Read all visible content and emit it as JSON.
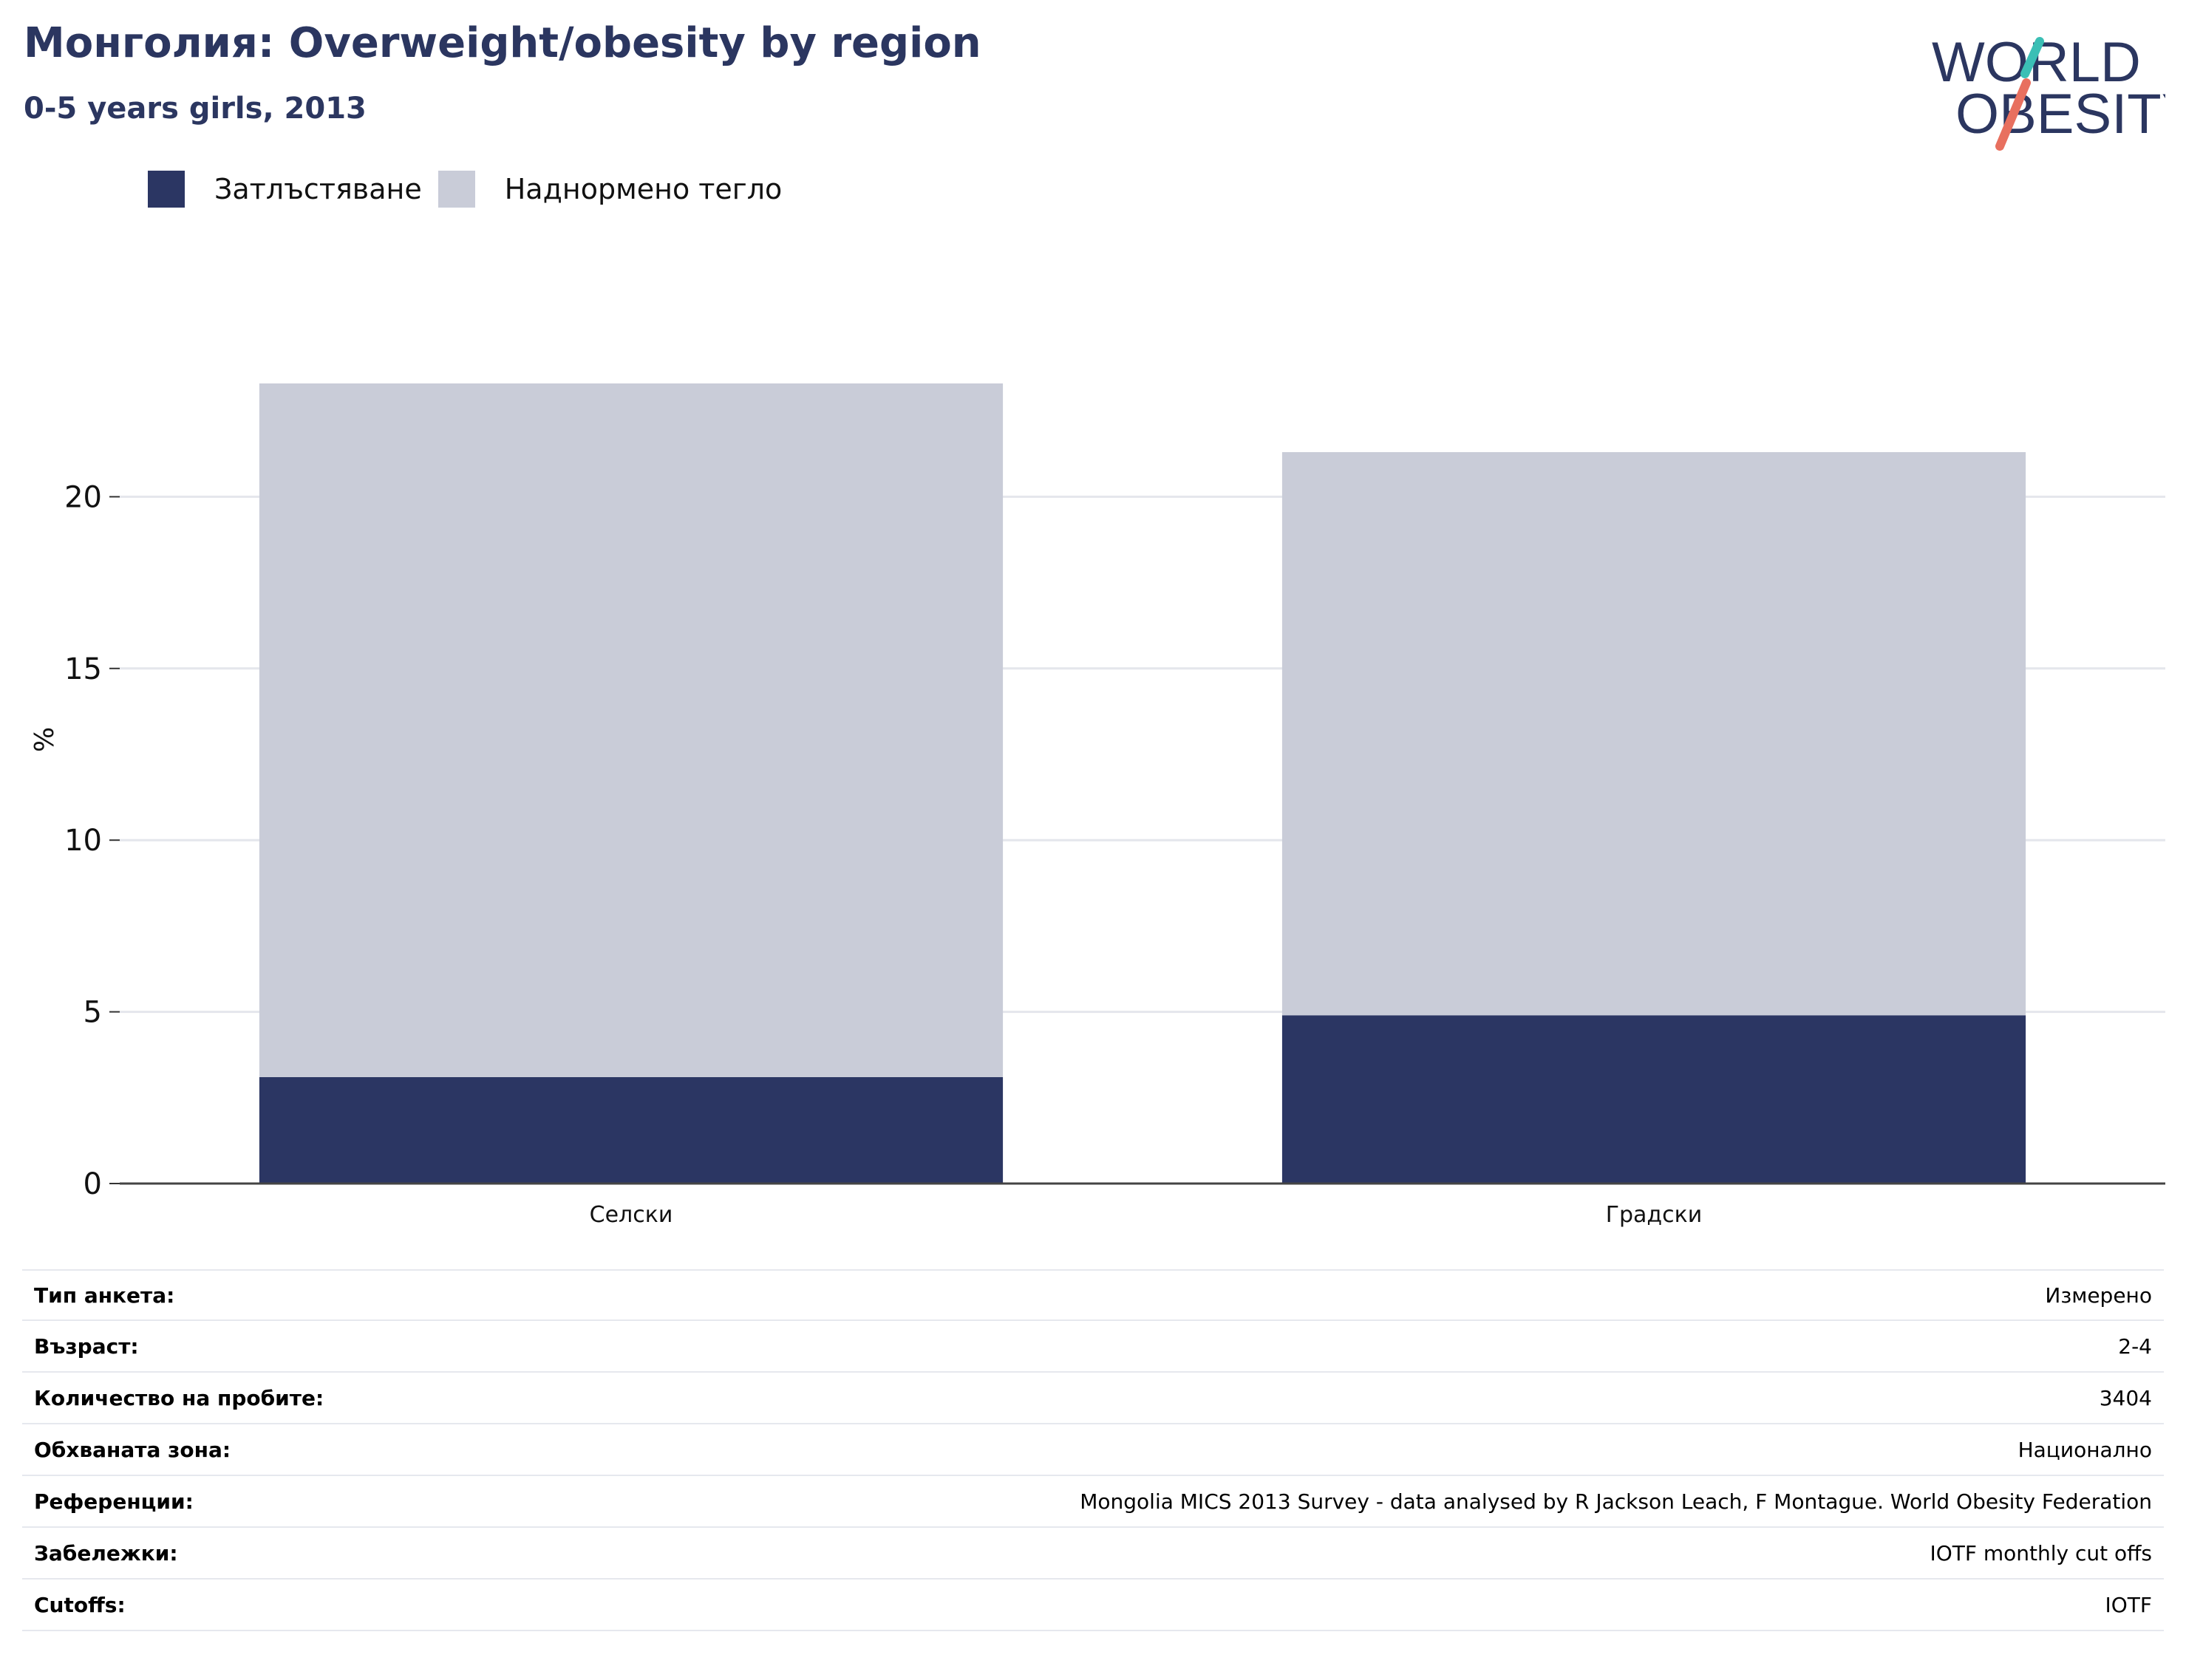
{
  "header": {
    "title": "Монголия: Overweight/obesity by region",
    "subtitle": "0-5 years girls, 2013"
  },
  "logo": {
    "line1": "WORLD",
    "line2": "OBESITY",
    "colors": {
      "text": "#2b3660",
      "slash_top": "#3bbfb5",
      "slash_bottom": "#e8705f"
    }
  },
  "legend": {
    "items": [
      {
        "label": "Затлъстяване",
        "color": "#2b3663"
      },
      {
        "label": "Наднормено тегло",
        "color": "#c9ccd8"
      }
    ]
  },
  "chart_data": {
    "type": "bar",
    "stacked": true,
    "categories": [
      "Селски",
      "Градски"
    ],
    "series": [
      {
        "name": "Затлъстяване",
        "values": [
          3.1,
          4.9
        ],
        "color": "#2b3663"
      },
      {
        "name": "Наднормено тегло",
        "values": [
          20.2,
          16.4
        ],
        "color": "#c9ccd8"
      }
    ],
    "ylabel": "%",
    "ylim": [
      0,
      25
    ],
    "yticks": [
      0,
      5,
      10,
      15,
      20
    ],
    "grid": true,
    "legend_position": "top-left"
  },
  "info": {
    "rows": [
      {
        "key": "Тип анкета:",
        "value": "Измерено"
      },
      {
        "key": "Възраст:",
        "value": "2-4"
      },
      {
        "key": "Количество на пробите:",
        "value": "3404"
      },
      {
        "key": "Обхваната зона:",
        "value": "Национално"
      },
      {
        "key": "Референции:",
        "value": "Mongolia MICS 2013 Survey - data analysed by R Jackson Leach, F Montague. World Obesity Federation"
      },
      {
        "key": "Забележки:",
        "value": "IOTF monthly cut offs"
      },
      {
        "key": "Cutoffs:",
        "value": "IOTF"
      }
    ]
  }
}
